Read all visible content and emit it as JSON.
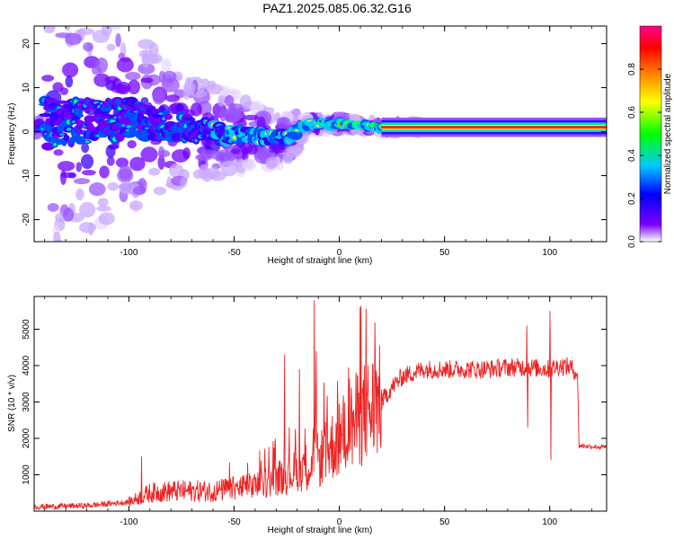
{
  "title": "PAZ1.2025.085.06.32.G16",
  "chart_data": [
    {
      "type": "heatmap",
      "xlabel": "Height of straight line (km)",
      "ylabel": "Frequency (Hz)",
      "xlim": [
        -145,
        127
      ],
      "ylim": [
        -25,
        24
      ],
      "x_ticks": [
        -100,
        -50,
        0,
        50,
        100
      ],
      "y_ticks": [
        -20,
        -10,
        0,
        10,
        20
      ],
      "colorbar": {
        "label": "Normalized spectral amplitude",
        "range": [
          0,
          1
        ],
        "ticks": [
          "0.0",
          "0.2",
          "0.4",
          "0.6",
          "0.8"
        ],
        "colors": [
          "#ffffff",
          "#7a00ff",
          "#0000ff",
          "#00c8ff",
          "#00ff00",
          "#ffff00",
          "#ff8000",
          "#ff0000",
          "#ff0090"
        ]
      },
      "ridge": [
        {
          "x": -140,
          "f": 2.0,
          "spread": 8
        },
        {
          "x": -120,
          "f": 2.0,
          "spread": 7
        },
        {
          "x": -100,
          "f": 3.0,
          "spread": 6
        },
        {
          "x": -80,
          "f": 1.0,
          "spread": 4
        },
        {
          "x": -60,
          "f": 0.0,
          "spread": 3
        },
        {
          "x": -40,
          "f": -1.0,
          "spread": 2
        },
        {
          "x": -25,
          "f": -1.5,
          "spread": 1.5
        },
        {
          "x": -15,
          "f": 1.5,
          "spread": 1
        },
        {
          "x": 0,
          "f": 2.0,
          "spread": 0.8
        },
        {
          "x": 20,
          "f": 1.0,
          "spread": 0.5
        },
        {
          "x": 127,
          "f": 1.0,
          "spread": 0.5
        }
      ]
    },
    {
      "type": "line",
      "xlabel": "Height of straight line (km)",
      "ylabel": "SNR (10 * v/v)",
      "xlim": [
        -145,
        127
      ],
      "ylim": [
        0,
        5900
      ],
      "x_ticks": [
        -100,
        -50,
        0,
        50,
        100
      ],
      "y_ticks": [
        1000,
        2000,
        3000,
        4000,
        5000
      ],
      "line_color": "#ee2222",
      "trend": {
        "x": [
          -145,
          -120,
          -100,
          -90,
          -80,
          -60,
          -40,
          -30,
          -20,
          -10,
          0,
          10,
          20,
          25,
          30,
          40,
          50,
          60,
          70,
          80,
          90,
          100,
          105,
          110,
          113,
          114,
          127
        ],
        "y": [
          120,
          150,
          250,
          500,
          550,
          550,
          700,
          900,
          1100,
          1400,
          2000,
          2600,
          3000,
          3400,
          3700,
          3900,
          3900,
          3900,
          3900,
          3950,
          3950,
          3900,
          4000,
          3950,
          3800,
          1800,
          1750
        ]
      },
      "spikes": [
        {
          "x": -94,
          "y": 1500
        },
        {
          "x": -26,
          "y": 4300
        },
        {
          "x": -19,
          "y": 3900
        },
        {
          "x": -12,
          "y": 5800
        },
        {
          "x": -11,
          "y": 4400
        },
        {
          "x": 100,
          "y": 5500
        },
        {
          "x": 100.5,
          "y": 1400
        },
        {
          "x": 89,
          "y": 5100
        },
        {
          "x": 89.5,
          "y": 2300
        }
      ]
    }
  ]
}
